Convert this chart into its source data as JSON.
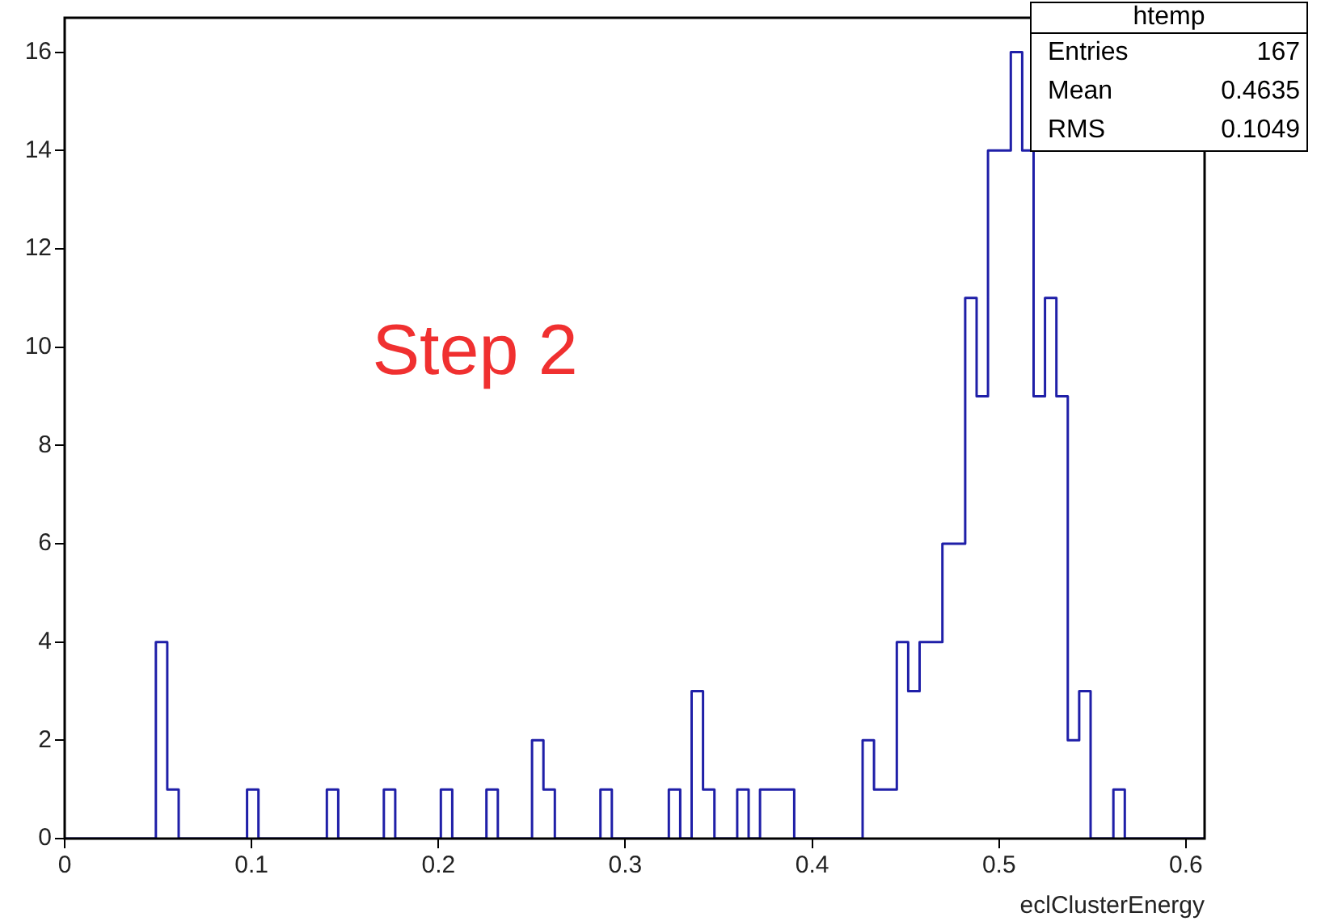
{
  "chart_data": {
    "type": "histogram",
    "xlabel": "eclClusterEnergy",
    "annotations": [
      "Step 2",
      "htemp",
      "Entries",
      "167",
      "Mean",
      "0.4635",
      "RMS",
      "0.1049"
    ],
    "bins": [
      0,
      0.0061,
      0.0122,
      0.0183,
      0.0244,
      0.0305,
      0.0366,
      0.0427,
      0.0488,
      0.0549,
      0.061,
      0.0671,
      0.0732,
      0.0793,
      0.0854,
      0.0915,
      0.0976,
      0.1037,
      0.1098,
      0.1159,
      0.122,
      0.1281,
      0.1342,
      0.1403,
      0.1464,
      0.1525,
      0.1586,
      0.1647,
      0.1708,
      0.1769,
      0.183,
      0.1891,
      0.1952,
      0.2013,
      0.2074,
      0.2135,
      0.2196,
      0.2257,
      0.2318,
      0.2379,
      0.244,
      0.2501,
      0.2562,
      0.2623,
      0.2684,
      0.2745,
      0.2806,
      0.2867,
      0.2928,
      0.2989,
      0.305,
      0.3111,
      0.3172,
      0.3233,
      0.3294,
      0.3355,
      0.3416,
      0.3477,
      0.3538,
      0.3599,
      0.366,
      0.3721,
      0.3782,
      0.3843,
      0.3904,
      0.3965,
      0.4026,
      0.4087,
      0.4148,
      0.4209,
      0.427,
      0.4331,
      0.4392,
      0.4453,
      0.4514,
      0.4575,
      0.4636,
      0.4697,
      0.4758,
      0.4819,
      0.488,
      0.4941,
      0.5002,
      0.5063,
      0.5124,
      0.5185,
      0.5246,
      0.5307,
      0.5368,
      0.5429,
      0.549,
      0.5551,
      0.5612,
      0.5673,
      0.5734,
      0.5795,
      0.5856,
      0.5917,
      0.5978,
      0.6039,
      0.61
    ],
    "values": [
      0,
      0,
      0,
      0,
      0,
      0,
      0,
      0,
      4,
      1,
      0,
      0,
      0,
      0,
      0,
      0,
      1,
      0,
      0,
      0,
      0,
      0,
      0,
      1,
      0,
      0,
      0,
      0,
      1,
      0,
      0,
      0,
      0,
      1,
      0,
      0,
      0,
      1,
      0,
      0,
      0,
      2,
      1,
      0,
      0,
      0,
      0,
      1,
      0,
      0,
      0,
      0,
      0,
      1,
      0,
      3,
      1,
      0,
      0,
      1,
      0,
      1,
      1,
      1,
      0,
      0,
      0,
      0,
      0,
      0,
      2,
      1,
      1,
      4,
      3,
      4,
      4,
      6,
      6,
      11,
      9,
      14,
      14,
      16,
      14,
      9,
      11,
      9,
      2,
      3,
      0,
      0,
      1,
      0,
      0,
      0,
      0,
      0,
      0,
      0
    ],
    "color": "#1f1fa8",
    "xlim": [
      0,
      0.61
    ],
    "xticks": [
      0,
      0.1,
      0.2,
      0.3,
      0.4,
      0.5,
      0.6
    ],
    "ylim": [
      0,
      16.7
    ],
    "yticks": [
      0,
      2,
      4,
      6,
      8,
      10,
      12,
      14,
      16
    ]
  }
}
